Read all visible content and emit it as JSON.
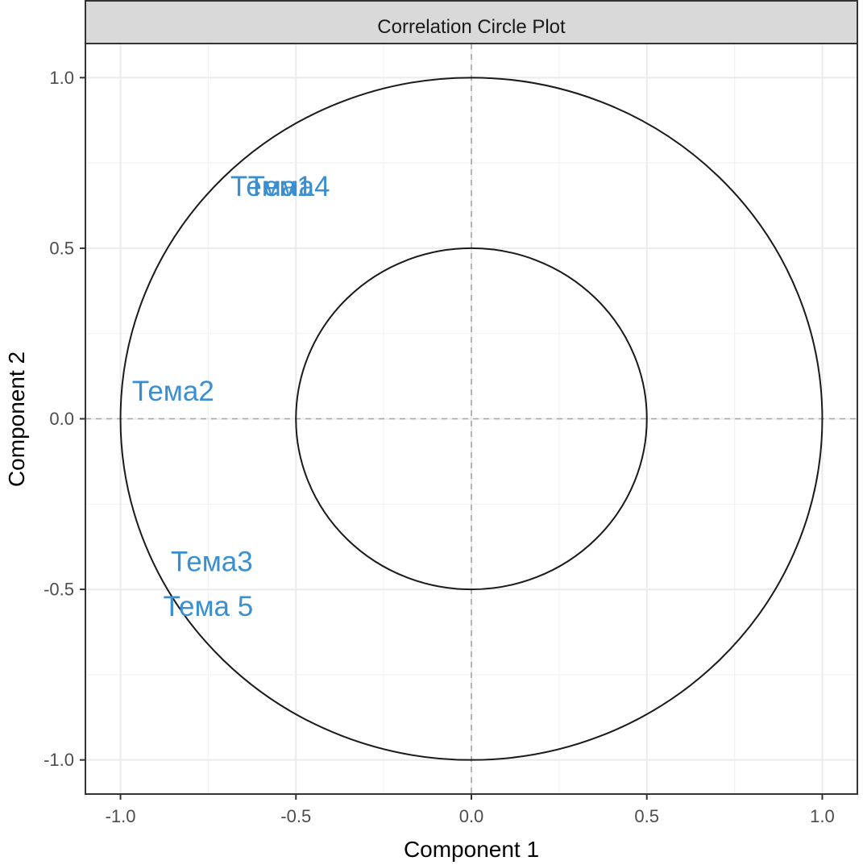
{
  "chart_data": {
    "type": "scatter",
    "title": "Correlation Circle Plot",
    "xlabel": "Component  1",
    "ylabel": "Component  2",
    "xlim": [
      -1.1,
      1.1
    ],
    "ylim": [
      -1.1,
      1.1
    ],
    "x_ticks": [
      -1.0,
      -0.5,
      0.0,
      0.5,
      1.0
    ],
    "y_ticks": [
      -1.0,
      -0.5,
      0.0,
      0.5,
      1.0
    ],
    "x_tick_labels": [
      "-1.0",
      "-0.5",
      "0.0",
      "0.5",
      "1.0"
    ],
    "y_tick_labels": [
      "-1.0",
      "-0.5",
      "0.0",
      "0.5",
      "1.0"
    ],
    "grid": true,
    "circles": [
      {
        "center": [
          0,
          0
        ],
        "radius": 1.0
      },
      {
        "center": [
          0,
          0
        ],
        "radius": 0.5
      }
    ],
    "reference_lines": {
      "x": 0,
      "y": 0,
      "style": "dashed"
    },
    "label_color": "#3A8FD0",
    "points": [
      {
        "label": "Тема1",
        "x": -0.57,
        "y": 0.68
      },
      {
        "label": "Тема4",
        "x": -0.52,
        "y": 0.68
      },
      {
        "label": "Тема2",
        "x": -0.85,
        "y": 0.08
      },
      {
        "label": "Тема3",
        "x": -0.74,
        "y": -0.42
      },
      {
        "label": "Тема 5",
        "x": -0.75,
        "y": -0.55
      }
    ]
  },
  "colors": {
    "strip_fill": "#d9d9d9",
    "panel_border": "#333333",
    "grid_major": "#ebebeb",
    "grid_minor": "#f2f2f2",
    "circle": "#1a1a1a",
    "reference_line": "#a6a6a6"
  }
}
